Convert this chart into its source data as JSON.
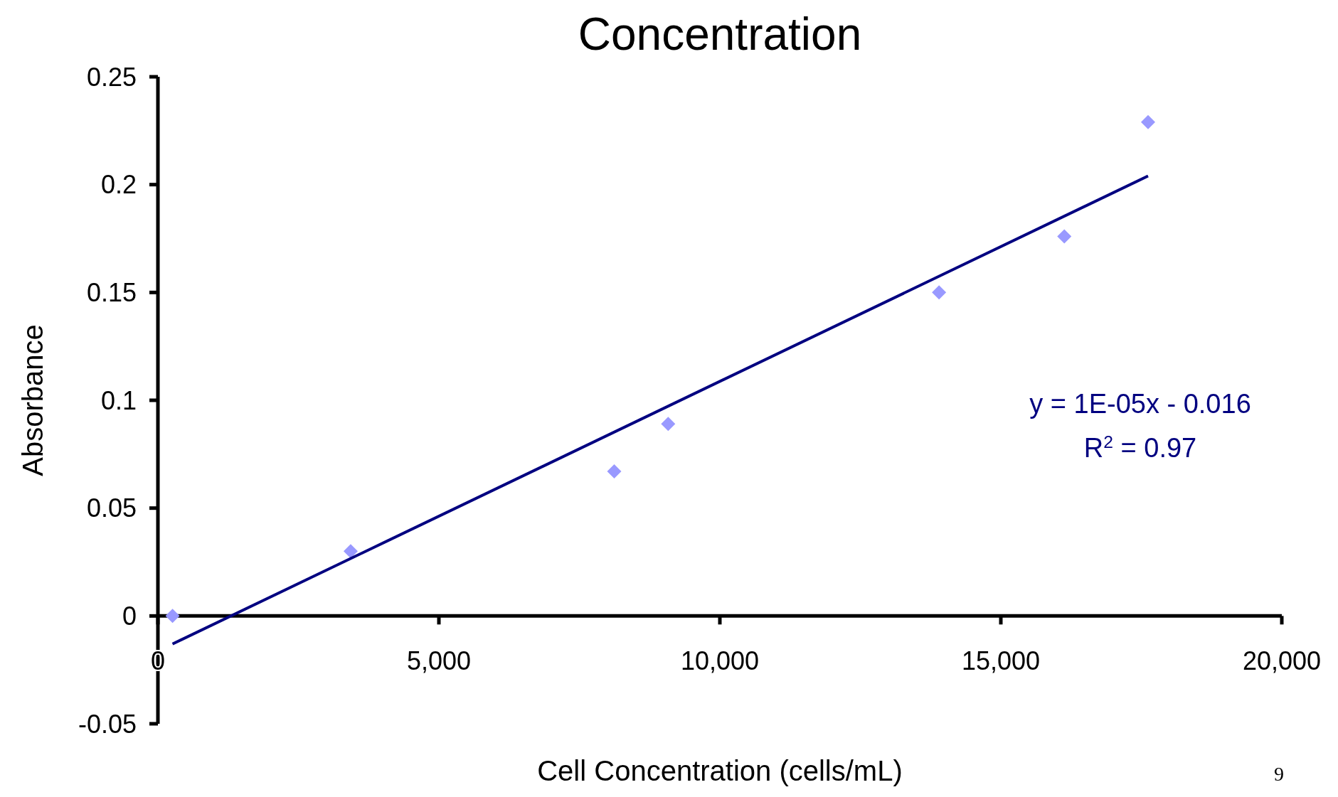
{
  "chart_data": {
    "type": "scatter",
    "title": "Concentration",
    "xlabel": "Cell Concentration (cells/mL)",
    "ylabel": "Absorbance",
    "x": [
      260,
      3430,
      8120,
      9080,
      13900,
      16130,
      17620
    ],
    "series": [
      {
        "color": "#9999ff",
        "marker": "diamond",
        "values": [
          0,
          0.03,
          0.067,
          0.089,
          0.15,
          0.176,
          0.229
        ]
      },
      {
        "type": "line",
        "color": "#000080",
        "x": [
          260,
          17620
        ],
        "values": [
          -0.013,
          0.204
        ]
      }
    ],
    "xlim": [
      0,
      20000
    ],
    "ylim": [
      -0.05,
      0.25
    ],
    "xticks": [
      0,
      {
        "value": 5000,
        "label": "5,000"
      },
      {
        "value": 10000,
        "label": "10,000"
      },
      {
        "value": 15000,
        "label": "15,000"
      },
      {
        "value": 20000,
        "label": "20,000"
      }
    ],
    "yticks": [
      -0.05,
      0,
      0.05,
      0.1,
      0.15,
      0.2,
      0.25
    ],
    "grid": false,
    "annotations": [
      "y = 1E-05x - 0.016",
      "R$^{2}$ = 0.97",
      "9"
    ]
  }
}
